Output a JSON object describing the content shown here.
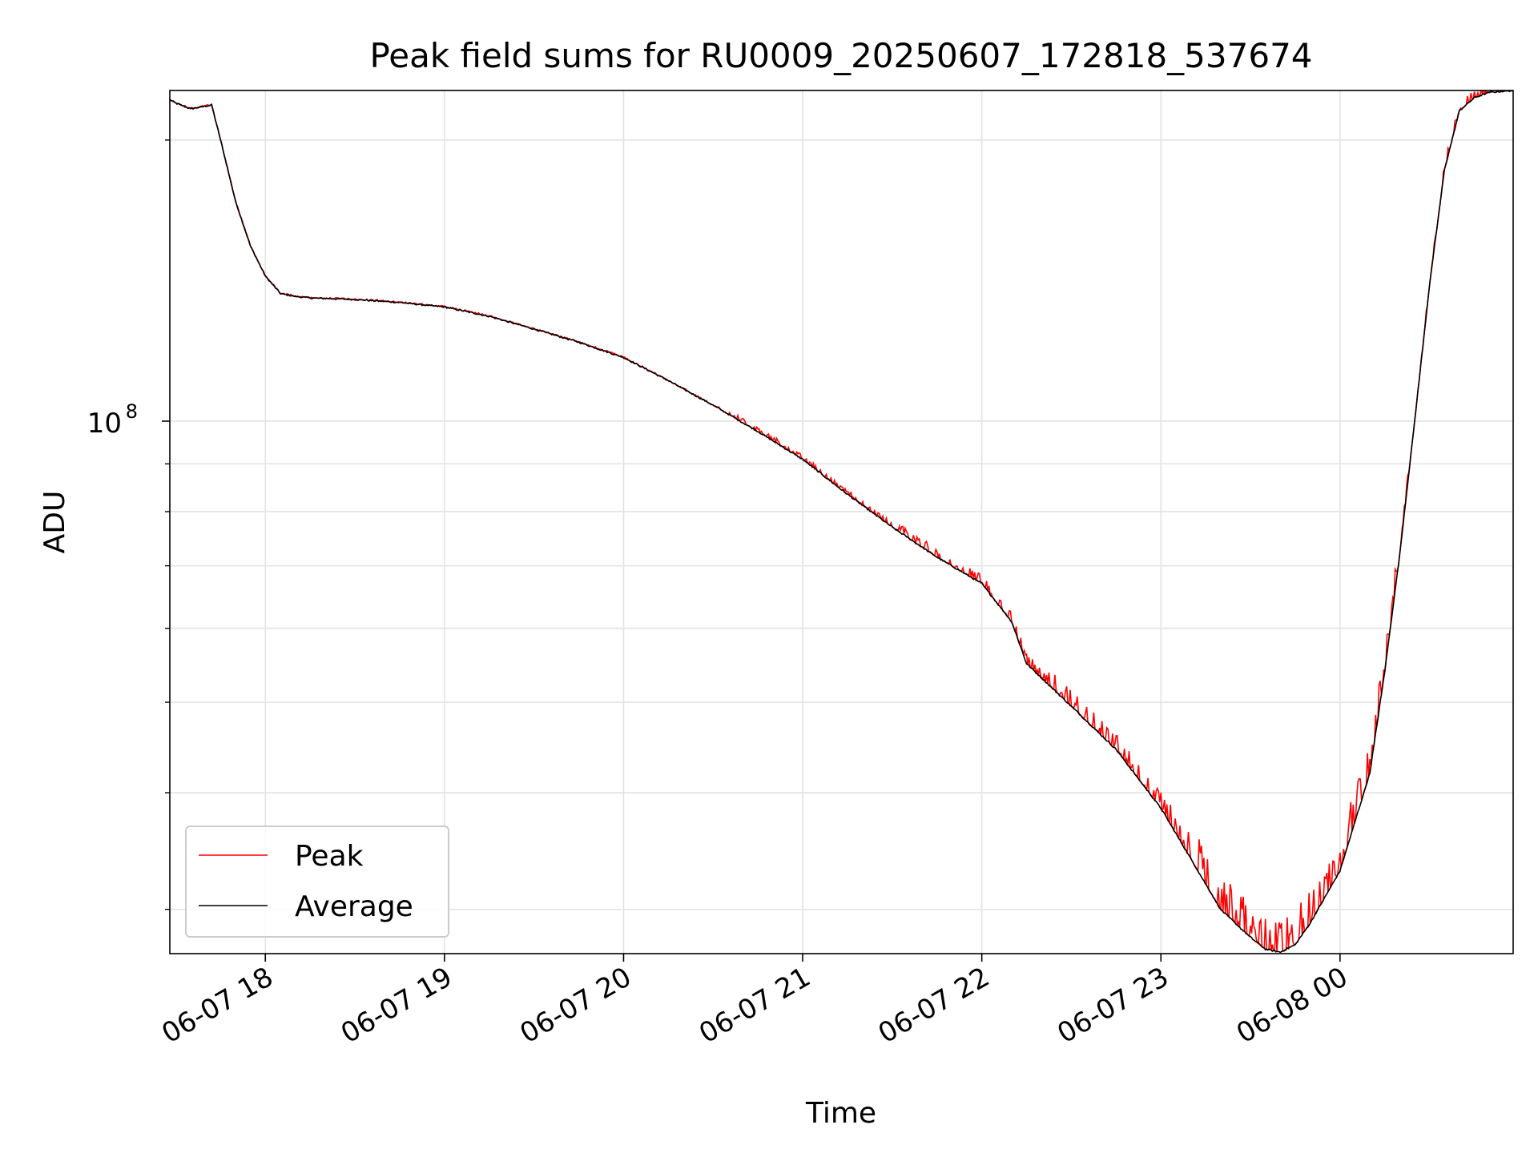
{
  "chart_data": {
    "type": "line",
    "title": "Peak field sums for RU0009_20250607_172818_537674",
    "xlabel": "Time",
    "ylabel": "ADU",
    "yscale": "log",
    "xlim": [
      "2025-06-07 17:28",
      "2025-06-08 00:58"
    ],
    "ylim": [
      26900000,
      226000000
    ],
    "x_ticks": [
      {
        "value": "2025-06-07 18:00",
        "label": "06-07 18"
      },
      {
        "value": "2025-06-07 19:00",
        "label": "06-07 19"
      },
      {
        "value": "2025-06-07 20:00",
        "label": "06-07 20"
      },
      {
        "value": "2025-06-07 21:00",
        "label": "06-07 21"
      },
      {
        "value": "2025-06-07 22:00",
        "label": "06-07 22"
      },
      {
        "value": "2025-06-07 23:00",
        "label": "06-07 23"
      },
      {
        "value": "2025-06-08 00:00",
        "label": "06-08 00"
      }
    ],
    "y_major_ticks": [
      {
        "value": 100000000,
        "label_base": "10",
        "label_exp": "8"
      }
    ],
    "y_minor_ticks": [
      30000000,
      40000000,
      50000000,
      60000000,
      70000000,
      80000000,
      90000000,
      200000000
    ],
    "grid": true,
    "legend": {
      "position": "lower-left",
      "entries": [
        "Peak",
        "Average"
      ]
    },
    "series": [
      {
        "name": "Average",
        "color": "#000000",
        "x": [
          "2025-06-07 17:28",
          "2025-06-07 17:30",
          "2025-06-07 17:35",
          "2025-06-07 17:42",
          "2025-06-07 17:45",
          "2025-06-07 17:50",
          "2025-06-07 17:55",
          "2025-06-07 18:00",
          "2025-06-07 18:05",
          "2025-06-07 18:10",
          "2025-06-07 18:15",
          "2025-06-07 18:30",
          "2025-06-07 18:45",
          "2025-06-07 19:00",
          "2025-06-07 19:15",
          "2025-06-07 19:30",
          "2025-06-07 19:45",
          "2025-06-07 20:00",
          "2025-06-07 20:15",
          "2025-06-07 20:30",
          "2025-06-07 20:45",
          "2025-06-07 21:00",
          "2025-06-07 21:15",
          "2025-06-07 21:30",
          "2025-06-07 21:45",
          "2025-06-07 22:00",
          "2025-06-07 22:10",
          "2025-06-07 22:15",
          "2025-06-07 22:30",
          "2025-06-07 22:45",
          "2025-06-07 23:00",
          "2025-06-07 23:10",
          "2025-06-07 23:20",
          "2025-06-07 23:30",
          "2025-06-07 23:35",
          "2025-06-07 23:40",
          "2025-06-07 23:45",
          "2025-06-07 23:50",
          "2025-06-08 00:00",
          "2025-06-08 00:10",
          "2025-06-08 00:15",
          "2025-06-08 00:20",
          "2025-06-08 00:25",
          "2025-06-08 00:30",
          "2025-06-08 00:35",
          "2025-06-08 00:40",
          "2025-06-08 00:45",
          "2025-06-08 00:50",
          "2025-06-08 00:58"
        ],
        "y": [
          221000000,
          219000000,
          216000000,
          218000000,
          200000000,
          172000000,
          154000000,
          143000000,
          137000000,
          136000000,
          135500000,
          135000000,
          134000000,
          132500000,
          129500000,
          125500000,
          121500000,
          117000000,
          110500000,
          104000000,
          97500000,
          91000000,
          83500000,
          77000000,
          71500000,
          67000000,
          61000000,
          55000000,
          49500000,
          44500000,
          38500000,
          34000000,
          30000000,
          28000000,
          27200000,
          27000000,
          27500000,
          29000000,
          33000000,
          42000000,
          54000000,
          72000000,
          100000000,
          140000000,
          186000000,
          215000000,
          222000000,
          225000000,
          226000000
        ]
      },
      {
        "name": "Peak",
        "color": "#ff0000",
        "noise": "upward spikes above Average, growing toward the minimum near 2025-06-07 23:40"
      }
    ]
  }
}
